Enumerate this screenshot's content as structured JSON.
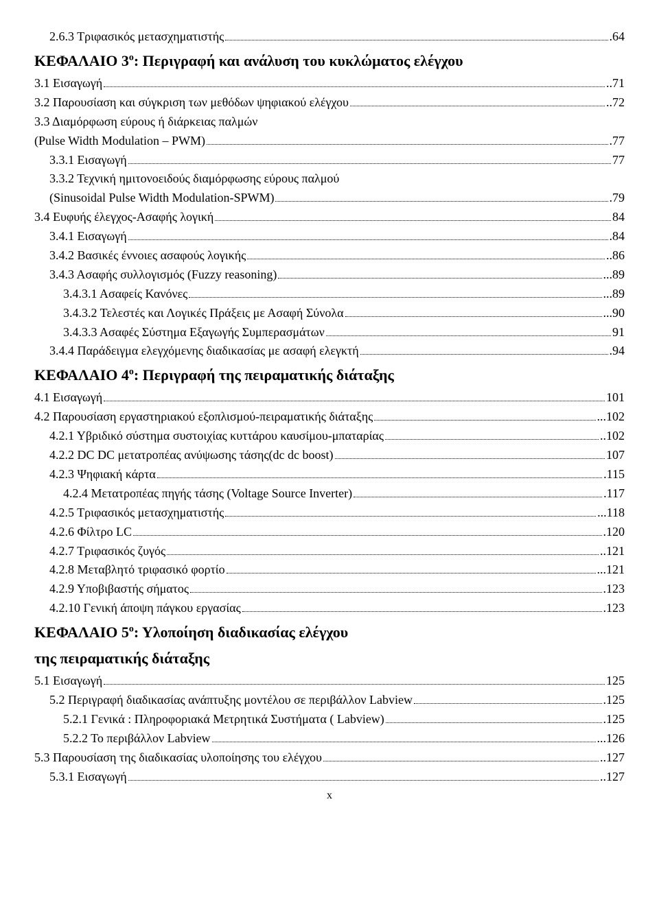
{
  "items": [
    {
      "cls": "l2",
      "label": "2.6.3 Τριφασικός μετασχηματιστής",
      "page": ".64"
    },
    {
      "chapter": true,
      "parts": [
        "ΚΕΦΑΛΑΙΟ 3",
        "ο",
        ": Περιγραφή και ανάλυση του κυκλώματος ελέγχου"
      ]
    },
    {
      "cls": "l1",
      "label": "3.1 Εισαγωγή",
      "page": "..71"
    },
    {
      "cls": "l1",
      "label": "3.2 Παρουσίαση και σύγκριση των μεθόδων ψηφιακού ελέγχου",
      "page": "..72"
    },
    {
      "cls": "l1",
      "label": "3.3 Διαμόρφωση εύρους ή διάρκειας παλμών",
      "page": "",
      "nolead": true
    },
    {
      "cls": "l1 cont",
      "label": "(Pulse Width Modulation – PWM)",
      "page": ".77"
    },
    {
      "cls": "l2",
      "label": "3.3.1 Εισαγωγή",
      "page": "77"
    },
    {
      "cls": "l2",
      "label": "3.3.2 Τεχνική ημιτονοειδούς διαμόρφωσης εύρους παλμού",
      "page": "",
      "nolead": true
    },
    {
      "cls": "l2 cont",
      "label": "(Sinusoidal Pulse Width Modulation-SPWM)",
      "page": ".79"
    },
    {
      "cls": "l1",
      "label": "3.4 Ευφυής έλεγχος-Ασαφής λογική",
      "page": "84"
    },
    {
      "cls": "l2",
      "label": "3.4.1 Εισαγωγή",
      "page": ".84"
    },
    {
      "cls": "l2",
      "label": "3.4.2 Βασικές έννοιες ασαφούς λογικής",
      "page": "..86"
    },
    {
      "cls": "l2",
      "label": "3.4.3 Ασαφής συλλογισμός  (Fuzzy reasoning)",
      "page": "...89"
    },
    {
      "cls": "l3",
      "label": "3.4.3.1 Ασαφείς Κανόνες",
      "page": "...89"
    },
    {
      "cls": "l3",
      "label": "3.4.3.2  Τελεστές και Λογικές Πράξεις με Ασαφή Σύνολα",
      "page": "...90"
    },
    {
      "cls": "l3",
      "label": "3.4.3.3 Ασαφές Σύστημα Εξαγωγής Συμπερασμάτων",
      "page": "91"
    },
    {
      "cls": "l2",
      "label": "3.4.4 Παράδειγμα ελεγχόμενης διαδικασίας με ασαφή ελεγκτή",
      "page": ".94"
    },
    {
      "chapter": true,
      "parts": [
        "ΚΕΦΑΛΑΙΟ 4",
        "ο",
        ": Περιγραφή της πειραματικής διάταξης"
      ]
    },
    {
      "cls": "l1",
      "label": "4.1 Εισαγωγή",
      "page": "101"
    },
    {
      "cls": "l1",
      "label": "4.2 Παρουσίαση εργαστηριακού εξοπλισμού-πειραματικής διάταξης",
      "page": "...102"
    },
    {
      "cls": "l2",
      "label": "4.2.1 Υβριδικό σύστημα συστοιχίας  κυττάρου καυσίμου-μπαταρίας",
      "page": "..102"
    },
    {
      "cls": "l2",
      "label": "4.2.2 DC DC μετατροπέας ανύψωσης τάσης(dc dc boost)",
      "page": "107"
    },
    {
      "cls": "l2",
      "label": "4.2.3 Ψηφιακή κάρτα",
      "page": ".115"
    },
    {
      "cls": "l3",
      "label": "4.2.4 Μετατροπέας πηγής τάσης (Voltage Source Inverter)",
      "page": ".117"
    },
    {
      "cls": "l2",
      "label": "4.2.5 Τριφασικός μετασχηματιστής",
      "page": "...118"
    },
    {
      "cls": "l2",
      "label": "4.2.6 Φίλτρο LC",
      "page": ".120"
    },
    {
      "cls": "l2",
      "label": "4.2.7 Τριφασικός ζυγός",
      "page": "..121"
    },
    {
      "cls": "l2",
      "label": "4.2.8 Μεταβλητό τριφασικό φορτίο",
      "page": "...121"
    },
    {
      "cls": "l2",
      "label": "4.2.9 Υποβιβαστής σήματος",
      "page": ".123"
    },
    {
      "cls": "l2",
      "label": "4.2.10 Γενική άποψη πάγκου εργασίας",
      "page": ".123"
    },
    {
      "chapter": true,
      "parts": [
        "ΚΕΦΑΛΑΙΟ 5",
        "ο",
        ": Υλοποίηση διαδικασίας ελέγχου"
      ]
    },
    {
      "chapter": true,
      "parts": [
        "της πειραματικής διάταξης",
        "",
        ""
      ]
    },
    {
      "cls": "l1",
      "label": "5.1 Εισαγωγή",
      "page": "125"
    },
    {
      "cls": "l2",
      "label": "5.2 Περιγραφή διαδικασίας ανάπτυξης μοντέλου σε περιβάλλον Labview",
      "page": ".125"
    },
    {
      "cls": "l3",
      "label": "5.2.1 Γενικά :  Πληροφοριακά  Μετρητικά Συστήματα ( Labview)",
      "page": ".125"
    },
    {
      "cls": "l3",
      "label": "5.2.2 Το περιβάλλον Labview",
      "page": "...126"
    },
    {
      "cls": "l1",
      "label": "5.3 Παρουσίαση της διαδικασίας υλοποίησης του ελέγχου",
      "page": "..127"
    },
    {
      "cls": "l2",
      "label": "5.3.1 Εισαγωγή",
      "page": "..127"
    }
  ],
  "footerRoman": "x"
}
